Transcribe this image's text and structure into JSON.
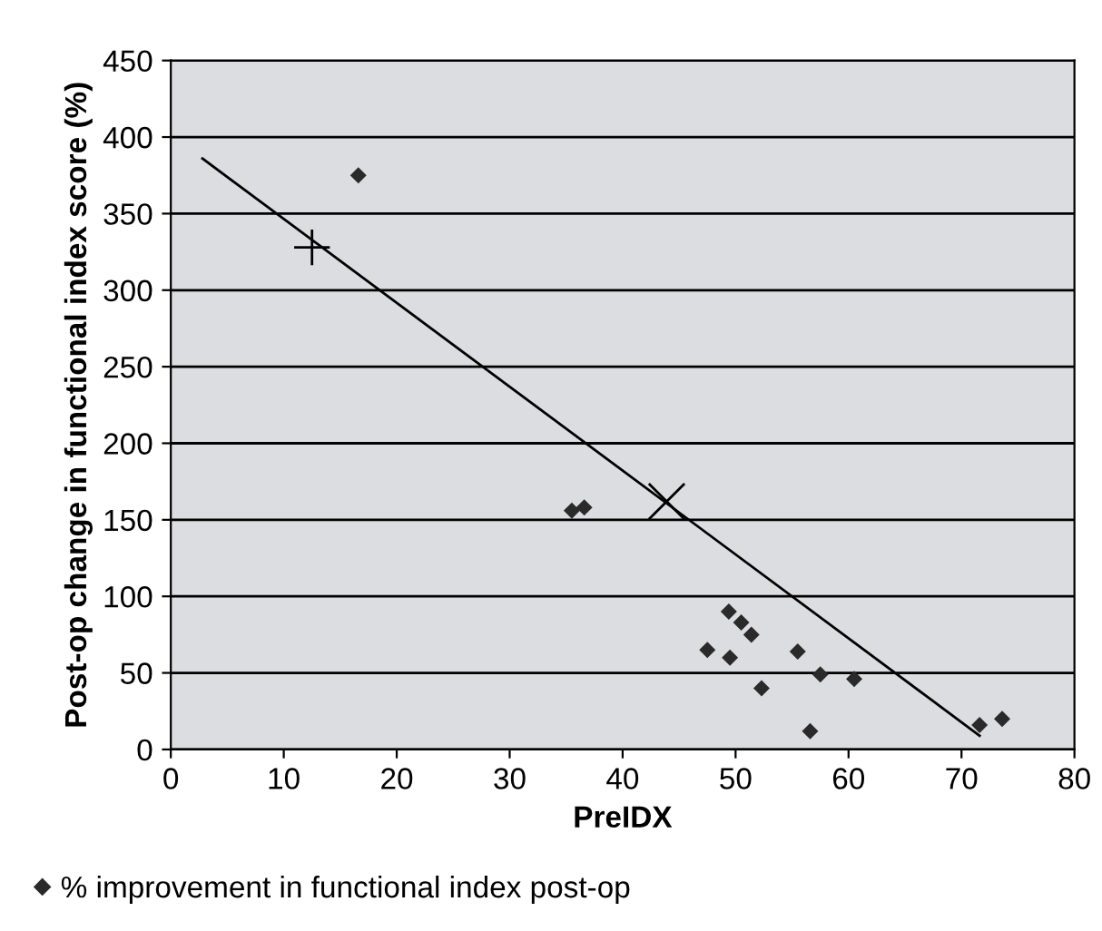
{
  "chart_data": {
    "type": "scatter",
    "xlabel": "PreIDX",
    "ylabel": "Post-op change in functional index score (%)",
    "xlim": [
      0,
      80
    ],
    "xticks": [
      0,
      10,
      20,
      30,
      40,
      50,
      60,
      70,
      80
    ],
    "ylim": [
      0,
      450
    ],
    "yticks": [
      0,
      50,
      100,
      150,
      200,
      250,
      300,
      350,
      400,
      450
    ],
    "grid": "y",
    "legend": "bottom left",
    "series": [
      {
        "name": "% improvement in functional index post-op",
        "marker": "diamond",
        "color": "#2a2a2a",
        "x": [
          16.6,
          35.5,
          36.6,
          49.4,
          50.5,
          51.4,
          47.5,
          49.5,
          52.3,
          55.5,
          57.5,
          60.5,
          56.6,
          71.6,
          73.6
        ],
        "values": [
          375,
          156,
          158,
          90,
          83,
          75,
          65,
          60,
          40,
          64,
          49,
          46,
          12,
          16,
          20
        ]
      },
      {
        "type": "line",
        "marker": "none",
        "color": "#000000",
        "x": [
          2.8,
          71.6
        ],
        "values": [
          386,
          9
        ]
      },
      {
        "type": "scatter",
        "marker": "cross",
        "color": "#000000",
        "x": [
          12.5
        ],
        "values": [
          328
        ]
      },
      {
        "type": "scatter",
        "marker": "x",
        "color": "#000000",
        "x": [
          43.9
        ],
        "values": [
          162
        ]
      }
    ]
  }
}
